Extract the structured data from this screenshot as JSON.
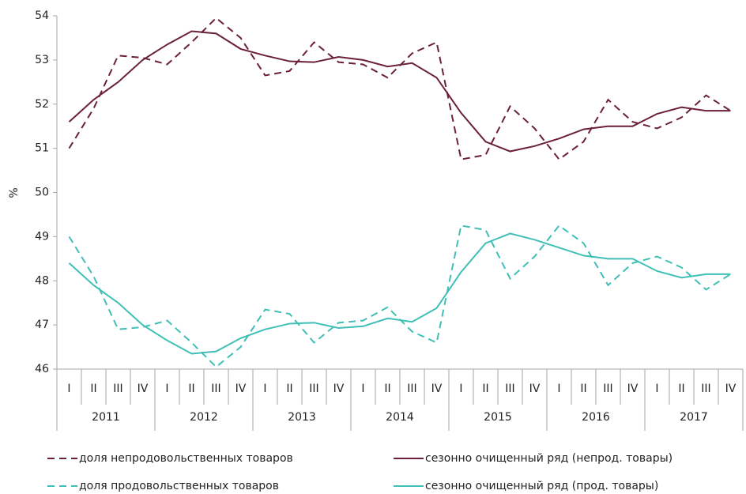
{
  "chart_data": {
    "type": "line",
    "ylabel": "%",
    "categories": [
      "I",
      "II",
      "III",
      "IV",
      "I",
      "II",
      "III",
      "IV",
      "I",
      "II",
      "III",
      "IV",
      "I",
      "II",
      "III",
      "IV",
      "I",
      "II",
      "III",
      "IV",
      "I",
      "II",
      "III",
      "IV",
      "I",
      "II",
      "III",
      "IV"
    ],
    "groups": [
      "2011",
      "2012",
      "2013",
      "2014",
      "2015",
      "2016",
      "2017"
    ],
    "ylim": [
      46,
      54
    ],
    "yticks": [
      46,
      47,
      48,
      49,
      50,
      51,
      52,
      53,
      54
    ],
    "series": [
      {
        "name": "доля непродовольственных товаров",
        "color": "#6b1f3c",
        "style": "dashed",
        "values": [
          51.0,
          51.9,
          53.1,
          53.05,
          52.9,
          53.4,
          53.95,
          53.5,
          52.65,
          52.75,
          53.4,
          52.95,
          52.9,
          52.6,
          53.15,
          53.4,
          50.75,
          50.85,
          51.95,
          51.45,
          50.75,
          51.15,
          52.1,
          51.6,
          51.45,
          51.7,
          52.2,
          51.85
        ]
      },
      {
        "name": "сезонно очищенный ряд (непрод. товары)",
        "color": "#6b1f3c",
        "style": "solid",
        "values": [
          51.6,
          52.1,
          52.5,
          53.0,
          53.35,
          53.65,
          53.6,
          53.25,
          53.1,
          52.97,
          52.95,
          53.07,
          53.0,
          52.85,
          52.93,
          52.6,
          51.8,
          51.15,
          50.93,
          51.05,
          51.22,
          51.43,
          51.5,
          51.5,
          51.78,
          51.93,
          51.85,
          51.85
        ]
      },
      {
        "name": "доля продовольственных товаров",
        "color": "#3fbfb6",
        "style": "dashed",
        "values": [
          49.0,
          48.1,
          46.9,
          46.95,
          47.1,
          46.6,
          46.05,
          46.5,
          47.35,
          47.25,
          46.6,
          47.05,
          47.1,
          47.4,
          46.85,
          46.6,
          49.25,
          49.15,
          48.05,
          48.55,
          49.25,
          48.85,
          47.9,
          48.4,
          48.55,
          48.3,
          47.8,
          48.15
        ]
      },
      {
        "name": "сезонно очищенный ряд (прод. товары)",
        "color": "#3fbfb6",
        "style": "solid",
        "values": [
          48.4,
          47.9,
          47.5,
          47.0,
          46.65,
          46.35,
          46.4,
          46.7,
          46.9,
          47.03,
          47.05,
          46.93,
          46.97,
          47.15,
          47.07,
          47.38,
          48.2,
          48.85,
          49.07,
          48.93,
          48.75,
          48.57,
          48.5,
          48.5,
          48.22,
          48.07,
          48.15,
          48.15
        ]
      }
    ]
  }
}
